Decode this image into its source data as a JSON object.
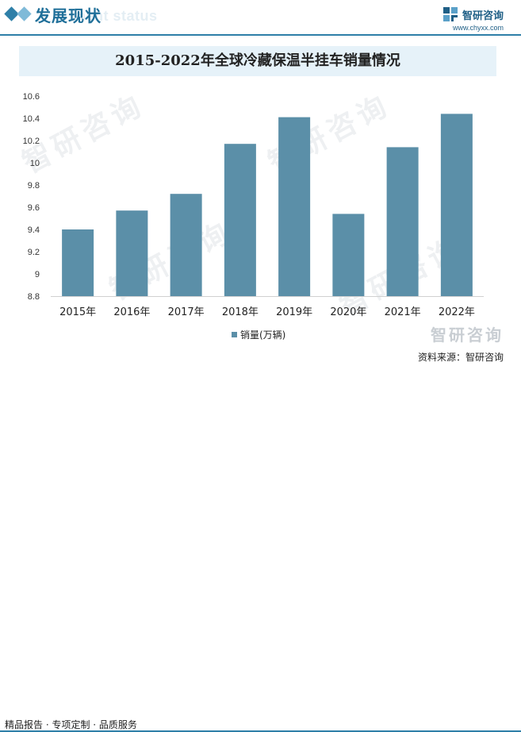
{
  "header": {
    "section_title": "发展现状",
    "section_subtitle": "ment status",
    "brand_name": "智研咨询",
    "brand_url": "www.chyxx.com"
  },
  "chart_data": {
    "type": "bar",
    "title": "2015-2022年全球冷藏保温半挂车销量情况",
    "categories": [
      "2015年",
      "2016年",
      "2017年",
      "2018年",
      "2019年",
      "2020年",
      "2021年",
      "2022年"
    ],
    "series": [
      {
        "name": "销量(万辆)",
        "values": [
          9.4,
          9.57,
          9.72,
          10.17,
          10.41,
          9.54,
          10.14,
          10.44
        ]
      }
    ],
    "ylim": [
      8.8,
      10.6
    ],
    "yticks": [
      "8.8",
      "9",
      "9.2",
      "9.4",
      "9.6",
      "9.8",
      "10",
      "10.2",
      "10.4",
      "10.6"
    ],
    "xlabel": "",
    "ylabel": "",
    "grid": false,
    "legend_position": "bottom",
    "colors": {
      "bar": "#5b8fa8"
    }
  },
  "watermark": {
    "text": "智研咨询"
  },
  "footer": {
    "left_text": "精品报告 · 专项定制 · 品质服务",
    "source_text": "资料来源：智研咨询"
  },
  "colors": {
    "accent": "#2e7fa8",
    "accent_light": "#7fbad8",
    "title_banner": "#e6f2f9"
  }
}
